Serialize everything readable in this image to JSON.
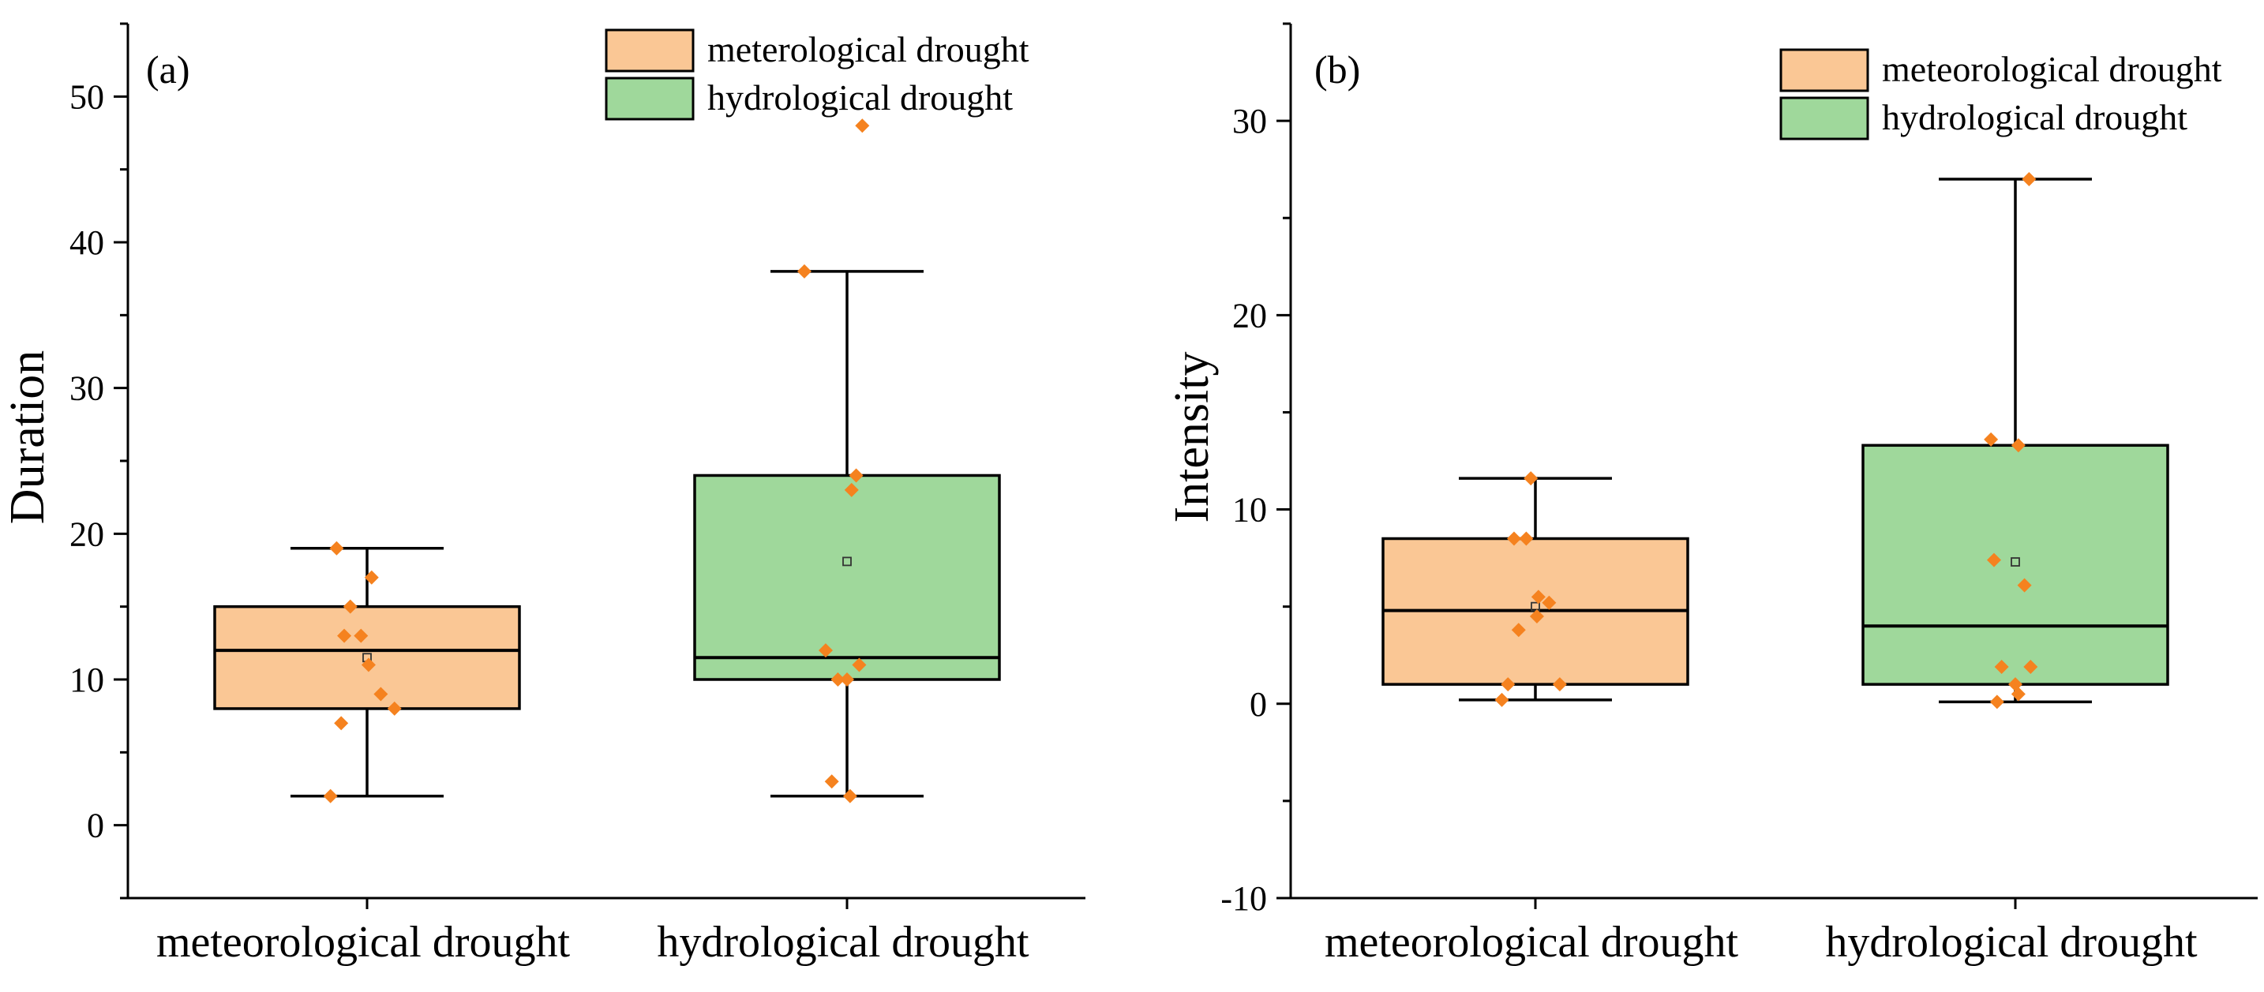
{
  "colors": {
    "meteorological": "#FAC795",
    "hydrological": "#9FD89B",
    "point": "#F5821F"
  },
  "chart_data": [
    {
      "type": "box",
      "panel_label": "(a)",
      "ylabel": "Duration",
      "ylim": [
        -5,
        55
      ],
      "yticks": [
        0,
        10,
        20,
        30,
        40,
        50
      ],
      "minor_step": 5,
      "categories": [
        "meteorological drought",
        "hydrological drought"
      ],
      "legend": [
        "meterological drought",
        "hydrological drought"
      ],
      "boxes": [
        {
          "name": "meteorological drought",
          "color_key": "meteorological",
          "whisker_low": 2,
          "q1": 8,
          "median": 12,
          "q3": 15,
          "whisker_high": 19,
          "mean": 11.5,
          "points": [
            [
              -0.1,
              19
            ],
            [
              0.015,
              17
            ],
            [
              -0.055,
              15
            ],
            [
              -0.075,
              13
            ],
            [
              -0.02,
              13
            ],
            [
              0.005,
              11
            ],
            [
              0.045,
              9
            ],
            [
              0.09,
              8
            ],
            [
              -0.085,
              7
            ],
            [
              -0.12,
              2
            ]
          ]
        },
        {
          "name": "hydrological drought",
          "color_key": "hydrological",
          "whisker_low": 2,
          "q1": 10,
          "median": 11.5,
          "q3": 24,
          "whisker_high": 38,
          "mean": 18.1,
          "points": [
            [
              0.05,
              48
            ],
            [
              -0.14,
              38
            ],
            [
              0.03,
              24
            ],
            [
              0.015,
              23
            ],
            [
              -0.07,
              12
            ],
            [
              -0.03,
              10
            ],
            [
              0.0,
              10
            ],
            [
              0.04,
              11
            ],
            [
              -0.05,
              3
            ],
            [
              0.01,
              2
            ]
          ]
        }
      ]
    },
    {
      "type": "box",
      "panel_label": "(b)",
      "ylabel": "Intensity",
      "ylim": [
        -10,
        35
      ],
      "yticks": [
        -10,
        0,
        10,
        20,
        30
      ],
      "minor_step": 5,
      "categories": [
        "meteorological drought",
        "hydrological drought"
      ],
      "legend": [
        "meteorological drought",
        "hydrological drought"
      ],
      "boxes": [
        {
          "name": "meteorological drought",
          "color_key": "meteorological",
          "whisker_low": 0.2,
          "q1": 1.0,
          "median": 4.8,
          "q3": 8.5,
          "whisker_high": 11.6,
          "mean": 5.0,
          "points": [
            [
              -0.015,
              11.6
            ],
            [
              -0.07,
              8.5
            ],
            [
              -0.03,
              8.5
            ],
            [
              0.01,
              5.5
            ],
            [
              0.045,
              5.2
            ],
            [
              0.005,
              4.5
            ],
            [
              -0.055,
              3.8
            ],
            [
              -0.09,
              1.0
            ],
            [
              0.08,
              1.0
            ],
            [
              -0.11,
              0.2
            ]
          ]
        },
        {
          "name": "hydrological drought",
          "color_key": "hydrological",
          "whisker_low": 0.1,
          "q1": 1.0,
          "median": 4.0,
          "q3": 13.3,
          "whisker_high": 27.0,
          "mean": 7.3,
          "points": [
            [
              0.045,
              27.0
            ],
            [
              -0.08,
              13.6
            ],
            [
              0.01,
              13.3
            ],
            [
              -0.07,
              7.4
            ],
            [
              0.03,
              6.1
            ],
            [
              -0.045,
              1.9
            ],
            [
              0.05,
              1.9
            ],
            [
              0.0,
              1.0
            ],
            [
              0.01,
              0.5
            ],
            [
              -0.06,
              0.1
            ]
          ]
        }
      ]
    }
  ]
}
